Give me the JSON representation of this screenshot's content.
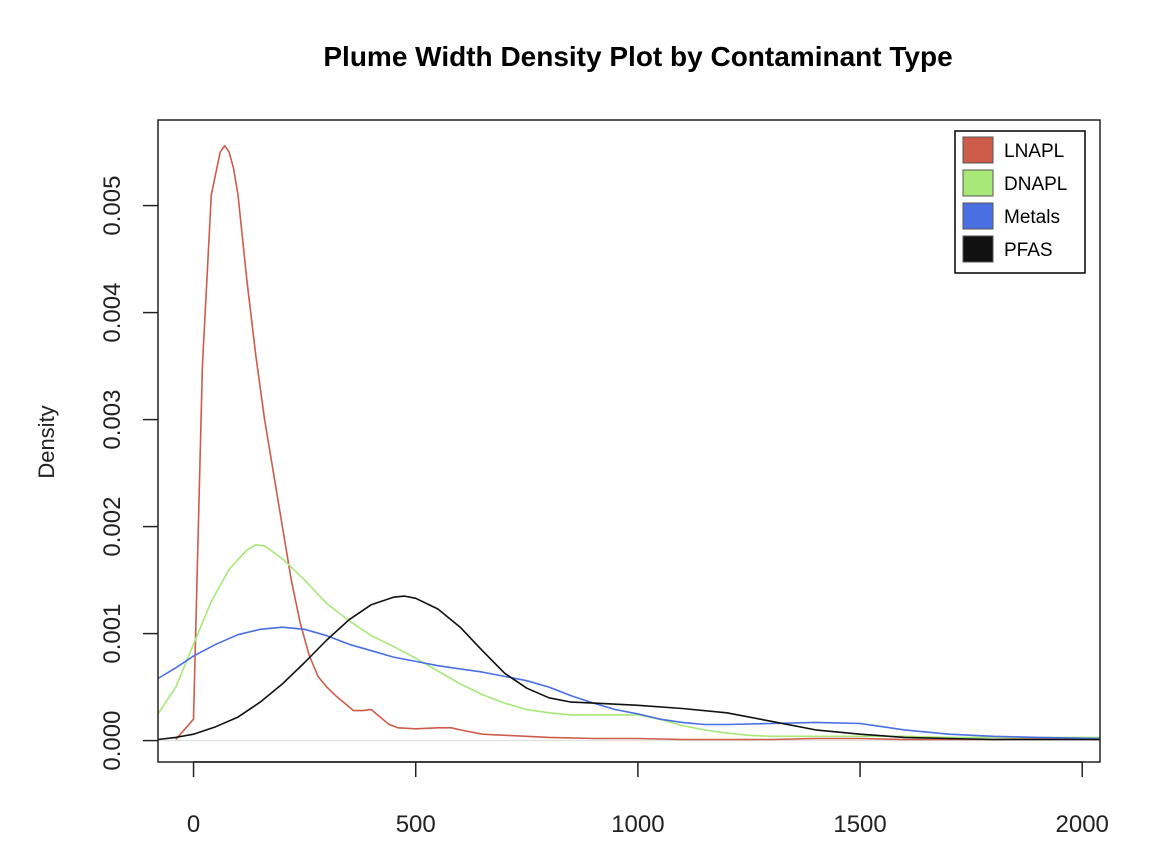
{
  "chart_data": {
    "type": "line",
    "title": "Plume Width Density Plot by Contaminant Type",
    "xlabel": "",
    "ylabel": "Density",
    "xlim": [
      -80,
      2040
    ],
    "ylim": [
      -0.0002,
      0.0058
    ],
    "x_ticks": [
      0,
      500,
      1000,
      1500,
      2000
    ],
    "x_tick_labels": [
      "0",
      "500",
      "1000",
      "1500",
      "2000"
    ],
    "y_ticks": [
      0.0,
      0.001,
      0.002,
      0.003,
      0.004,
      0.005
    ],
    "y_tick_labels": [
      "0.000",
      "0.001",
      "0.002",
      "0.003",
      "0.004",
      "0.005"
    ],
    "grid": false,
    "legend_position": "top-right",
    "series": [
      {
        "name": "LNAPL",
        "color": "#CD5C4A",
        "x": [
          -40,
          0,
          20,
          40,
          60,
          70,
          80,
          90,
          100,
          120,
          140,
          160,
          180,
          200,
          220,
          240,
          260,
          280,
          300,
          320,
          340,
          360,
          380,
          400,
          420,
          440,
          460,
          500,
          550,
          580,
          600,
          650,
          700,
          750,
          800,
          900,
          1000,
          1100,
          1200,
          1300,
          1400,
          1500,
          1600,
          1700,
          1800,
          1900,
          2040
        ],
        "y": [
          1e-05,
          0.0002,
          0.0035,
          0.0051,
          0.0055,
          0.00556,
          0.0055,
          0.00535,
          0.0051,
          0.0043,
          0.0036,
          0.003,
          0.0025,
          0.002,
          0.0015,
          0.0011,
          0.0008,
          0.0006,
          0.0005,
          0.00042,
          0.00035,
          0.00028,
          0.00028,
          0.00029,
          0.00022,
          0.00015,
          0.00012,
          0.00011,
          0.00012,
          0.00012,
          0.0001,
          6e-05,
          5e-05,
          4e-05,
          3e-05,
          2e-05,
          2e-05,
          1e-05,
          1e-05,
          1e-05,
          2e-05,
          2e-05,
          1e-05,
          1e-05,
          1e-05,
          2e-05,
          1e-05
        ]
      },
      {
        "name": "DNAPL",
        "color": "#A8E879",
        "x": [
          -80,
          -40,
          0,
          40,
          80,
          120,
          140,
          160,
          200,
          250,
          300,
          350,
          400,
          450,
          500,
          550,
          600,
          650,
          700,
          750,
          800,
          850,
          900,
          950,
          1000,
          1050,
          1100,
          1150,
          1200,
          1250,
          1300,
          1400,
          1500,
          1600,
          1700,
          1800,
          1900,
          2040
        ],
        "y": [
          0.00025,
          0.0005,
          0.0009,
          0.0013,
          0.0016,
          0.00178,
          0.00183,
          0.00182,
          0.0017,
          0.0015,
          0.00128,
          0.00112,
          0.00098,
          0.00088,
          0.00077,
          0.00065,
          0.00053,
          0.00043,
          0.00035,
          0.00029,
          0.00026,
          0.00024,
          0.00024,
          0.00024,
          0.00024,
          0.0002,
          0.00014,
          0.0001,
          7e-05,
          5e-05,
          4e-05,
          4e-05,
          4e-05,
          4e-05,
          3e-05,
          3e-05,
          3e-05,
          3e-05
        ]
      },
      {
        "name": "Metals",
        "color": "#4A6FE3",
        "x": [
          -80,
          -40,
          0,
          50,
          100,
          150,
          200,
          250,
          300,
          350,
          400,
          450,
          500,
          550,
          600,
          650,
          700,
          750,
          800,
          850,
          900,
          950,
          1000,
          1050,
          1100,
          1150,
          1200,
          1300,
          1400,
          1500,
          1550,
          1600,
          1700,
          1800,
          1900,
          2040
        ],
        "y": [
          0.00058,
          0.00068,
          0.00079,
          0.0009,
          0.00099,
          0.00104,
          0.00106,
          0.00104,
          0.00098,
          0.0009,
          0.00084,
          0.00078,
          0.00074,
          0.0007,
          0.00067,
          0.00064,
          0.0006,
          0.00056,
          0.0005,
          0.00042,
          0.00035,
          0.00029,
          0.00025,
          0.0002,
          0.00017,
          0.00015,
          0.00015,
          0.00016,
          0.00017,
          0.00016,
          0.00013,
          0.0001,
          6e-05,
          4e-05,
          3e-05,
          2e-05
        ]
      },
      {
        "name": "PFAS",
        "color": "#111111",
        "x": [
          -80,
          -40,
          0,
          50,
          100,
          150,
          200,
          250,
          300,
          350,
          400,
          450,
          475,
          500,
          550,
          600,
          650,
          700,
          750,
          800,
          850,
          900,
          950,
          1000,
          1100,
          1200,
          1300,
          1400,
          1500,
          1600,
          1700,
          1800,
          1900,
          2040
        ],
        "y": [
          1e-05,
          3e-05,
          6e-05,
          0.00013,
          0.00022,
          0.00036,
          0.00053,
          0.00073,
          0.00094,
          0.00113,
          0.00127,
          0.00134,
          0.00135,
          0.00133,
          0.00123,
          0.00106,
          0.00084,
          0.00063,
          0.00049,
          0.0004,
          0.00036,
          0.00035,
          0.00034,
          0.00033,
          0.0003,
          0.00026,
          0.00018,
          0.0001,
          6e-05,
          3e-05,
          2e-05,
          1e-05,
          1e-05,
          1e-05
        ]
      }
    ]
  }
}
